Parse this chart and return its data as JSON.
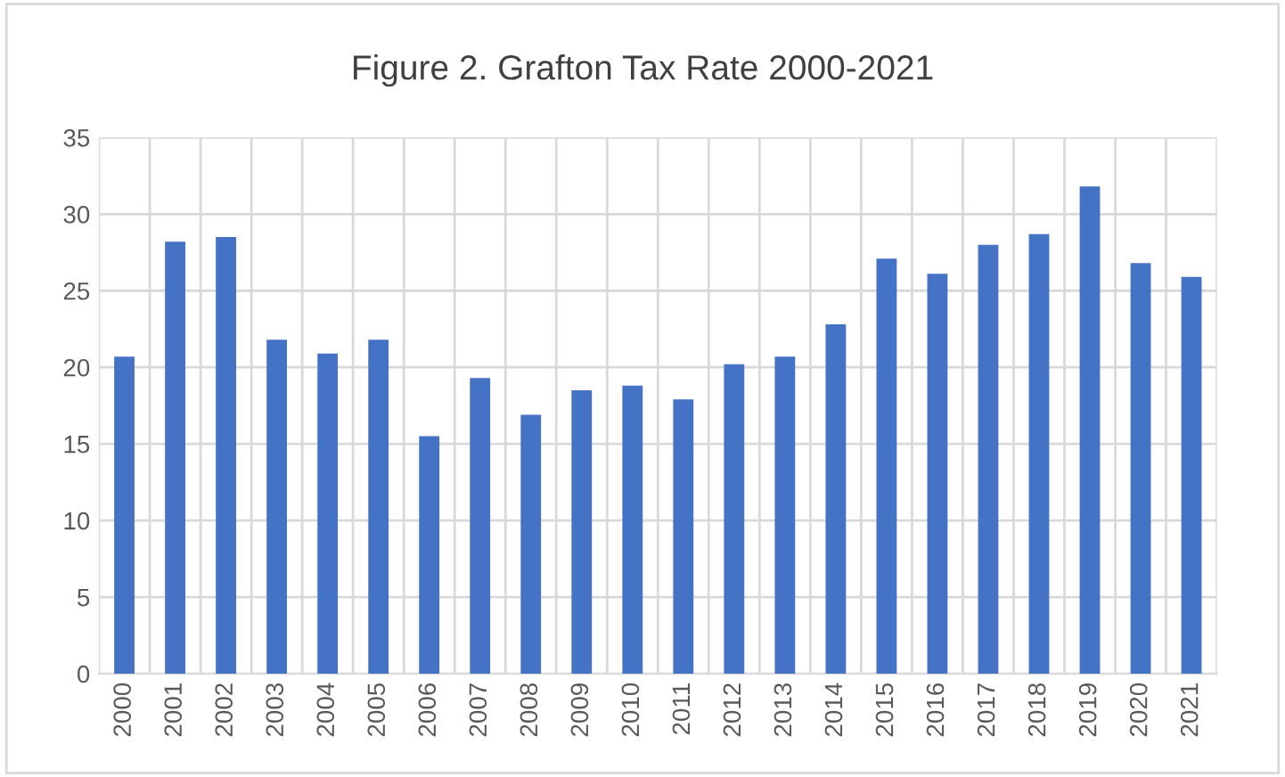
{
  "chart_data": {
    "type": "bar",
    "title": "Figure 2. Grafton Tax Rate 2000-2021",
    "categories": [
      "2000",
      "2001",
      "2002",
      "2003",
      "2004",
      "2005",
      "2006",
      "2007",
      "2008",
      "2009",
      "2010",
      "2011",
      "2012",
      "2013",
      "2014",
      "2015",
      "2016",
      "2017",
      "2018",
      "2019",
      "2020",
      "2021"
    ],
    "values": [
      20.7,
      28.2,
      28.5,
      21.8,
      20.9,
      21.8,
      15.5,
      19.3,
      16.9,
      18.5,
      18.8,
      17.9,
      20.2,
      20.7,
      22.8,
      27.1,
      26.1,
      28.0,
      28.7,
      31.8,
      26.8,
      25.9
    ],
    "color": "#4472c4",
    "ylim": [
      0,
      35
    ],
    "yticks": [
      0,
      5,
      10,
      15,
      20,
      25,
      30,
      35
    ],
    "grid": true
  }
}
